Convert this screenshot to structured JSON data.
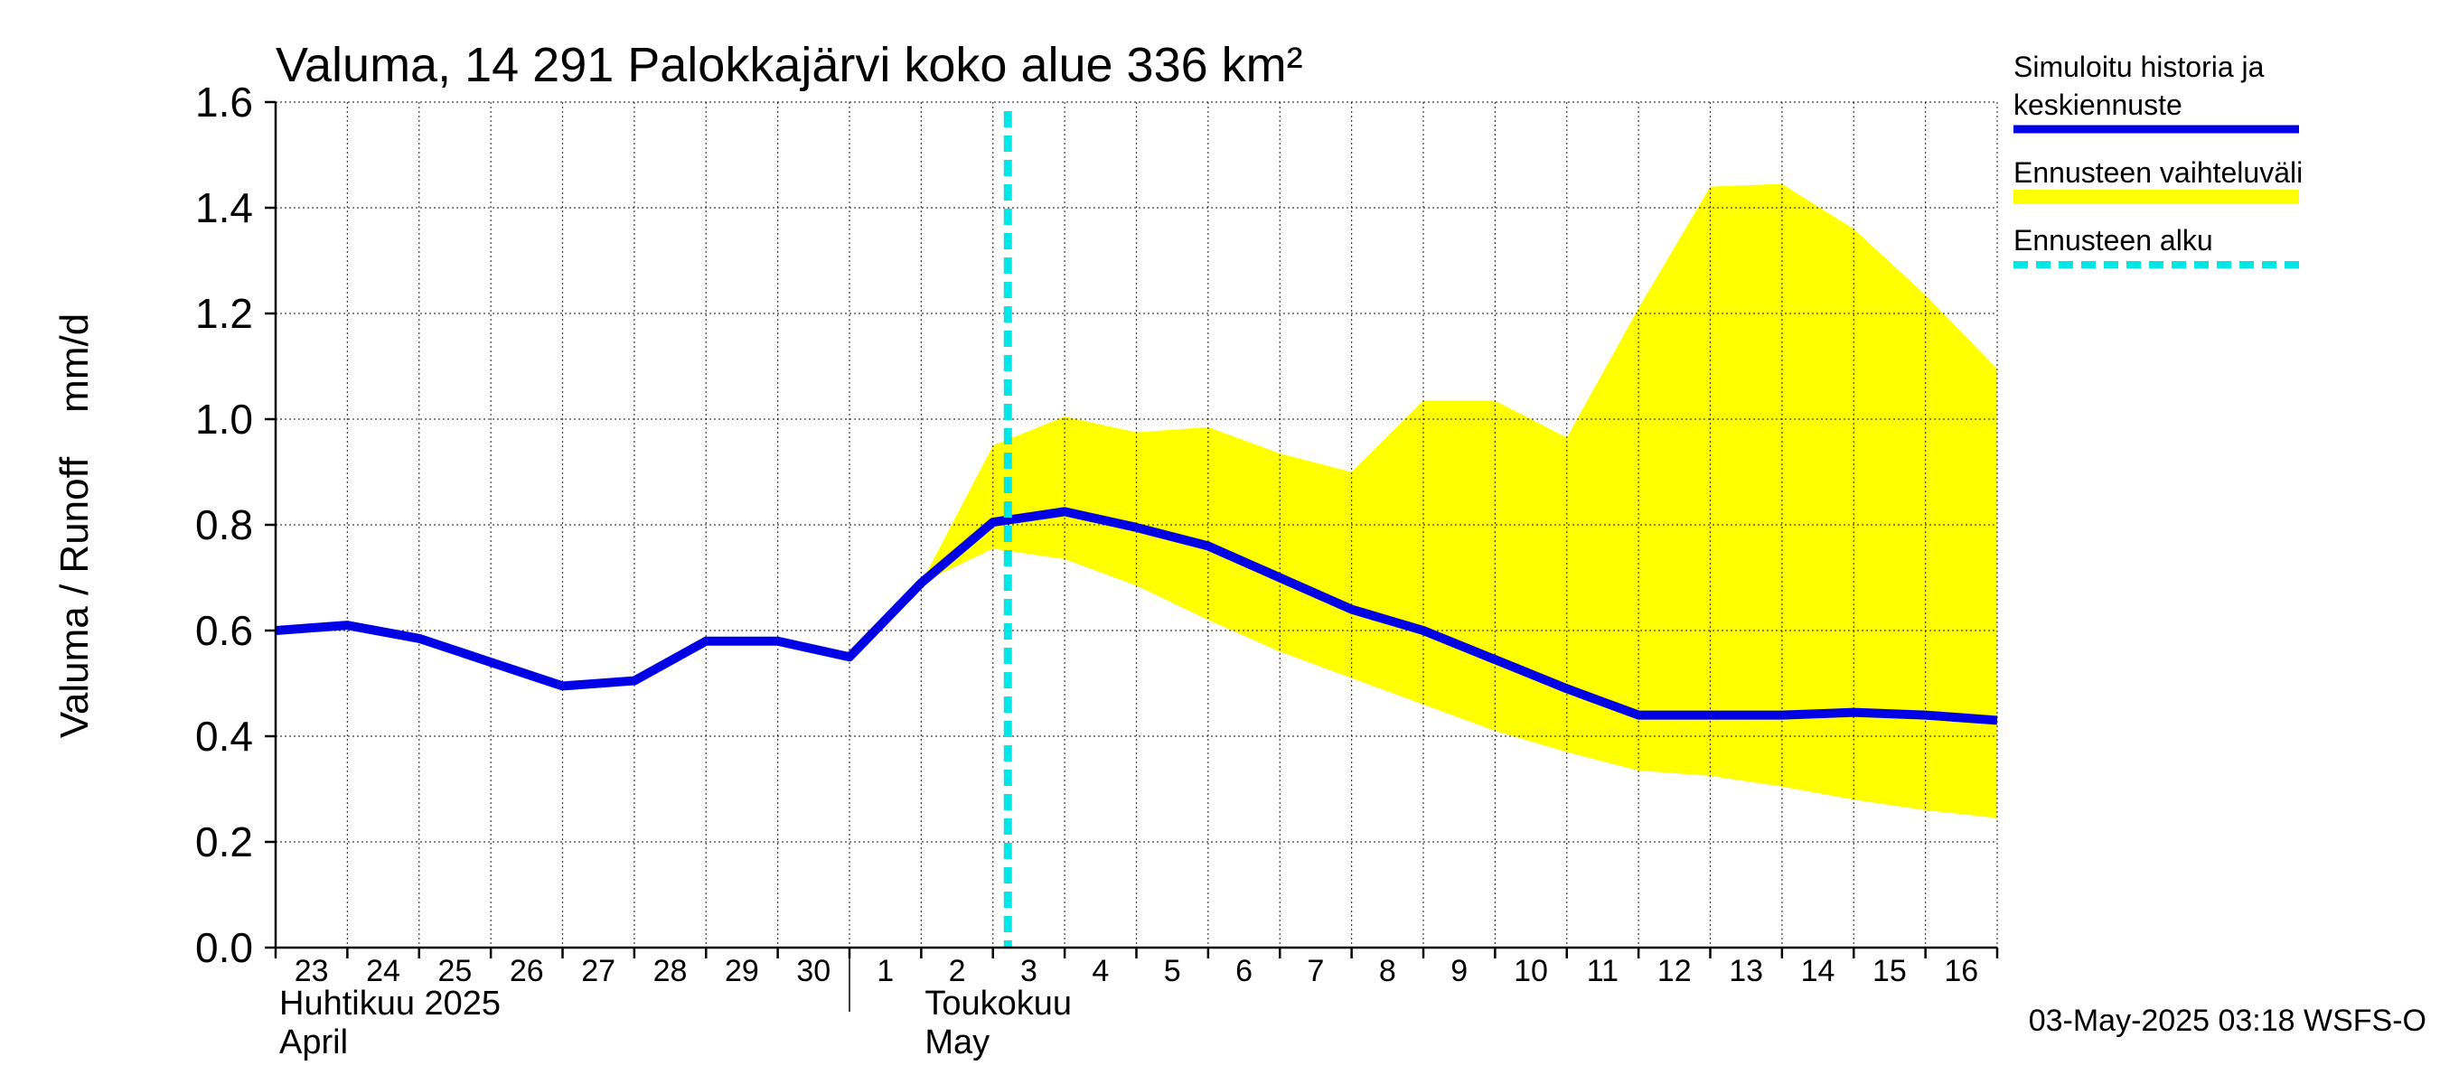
{
  "chart_data": {
    "type": "line",
    "title": "Valuma, 14 291 Palokkajärvi koko alue 336 km²",
    "ylabel": "Valuma / Runoff    mm/d",
    "ylim": [
      0.0,
      1.6
    ],
    "yticks": [
      "0.0",
      "0.2",
      "0.4",
      "0.6",
      "0.8",
      "1.0",
      "1.2",
      "1.4",
      "1.6"
    ],
    "x_start": "2025-04-23",
    "x_end": "2025-05-17",
    "day_labels": [
      "23",
      "24",
      "25",
      "26",
      "27",
      "28",
      "29",
      "30",
      "1",
      "2",
      "3",
      "4",
      "5",
      "6",
      "7",
      "8",
      "9",
      "10",
      "11",
      "12",
      "13",
      "14",
      "15",
      "16"
    ],
    "month_labels": [
      {
        "date": "2025-04-23",
        "line1": "Huhtikuu  2025",
        "line2": "April"
      },
      {
        "date": "2025-05-02",
        "line1": "Toukokuu",
        "line2": "May"
      }
    ],
    "forecast_start": "2025-05-03T05:00",
    "series": [
      {
        "name": "Simuloitu historia ja keskiennuste",
        "color": "#0000e6",
        "points": [
          [
            "2025-04-23",
            0.6
          ],
          [
            "2025-04-24",
            0.61
          ],
          [
            "2025-04-25",
            0.585
          ],
          [
            "2025-04-26",
            0.54
          ],
          [
            "2025-04-27",
            0.495
          ],
          [
            "2025-04-28",
            0.505
          ],
          [
            "2025-04-29",
            0.58
          ],
          [
            "2025-04-30",
            0.58
          ],
          [
            "2025-05-01",
            0.55
          ],
          [
            "2025-05-02",
            0.69
          ],
          [
            "2025-05-03",
            0.805
          ],
          [
            "2025-05-04",
            0.825
          ],
          [
            "2025-05-05",
            0.795
          ],
          [
            "2025-05-06",
            0.76
          ],
          [
            "2025-05-07",
            0.7
          ],
          [
            "2025-05-08",
            0.64
          ],
          [
            "2025-05-09",
            0.6
          ],
          [
            "2025-05-10",
            0.545
          ],
          [
            "2025-05-11",
            0.49
          ],
          [
            "2025-05-12",
            0.44
          ],
          [
            "2025-05-13",
            0.44
          ],
          [
            "2025-05-14",
            0.44
          ],
          [
            "2025-05-15",
            0.445
          ],
          [
            "2025-05-16",
            0.44
          ],
          [
            "2025-05-17",
            0.43
          ]
        ]
      },
      {
        "name": "Ennusteen vaihteluväli",
        "color": "#ffff00",
        "upper": [
          [
            "2025-05-02",
            0.69
          ],
          [
            "2025-05-03",
            0.95
          ],
          [
            "2025-05-04",
            1.005
          ],
          [
            "2025-05-05",
            0.975
          ],
          [
            "2025-05-06",
            0.985
          ],
          [
            "2025-05-07",
            0.935
          ],
          [
            "2025-05-08",
            0.9
          ],
          [
            "2025-05-09",
            1.035
          ],
          [
            "2025-05-10",
            1.035
          ],
          [
            "2025-05-11",
            0.965
          ],
          [
            "2025-05-12",
            1.21
          ],
          [
            "2025-05-13",
            1.44
          ],
          [
            "2025-05-14",
            1.445
          ],
          [
            "2025-05-15",
            1.36
          ],
          [
            "2025-05-16",
            1.235
          ],
          [
            "2025-05-17",
            1.095
          ]
        ],
        "lower": [
          [
            "2025-05-02",
            0.69
          ],
          [
            "2025-05-03",
            0.755
          ],
          [
            "2025-05-04",
            0.735
          ],
          [
            "2025-05-05",
            0.685
          ],
          [
            "2025-05-06",
            0.62
          ],
          [
            "2025-05-07",
            0.56
          ],
          [
            "2025-05-08",
            0.51
          ],
          [
            "2025-05-09",
            0.46
          ],
          [
            "2025-05-10",
            0.41
          ],
          [
            "2025-05-11",
            0.37
          ],
          [
            "2025-05-12",
            0.335
          ],
          [
            "2025-05-13",
            0.325
          ],
          [
            "2025-05-14",
            0.305
          ],
          [
            "2025-05-15",
            0.28
          ],
          [
            "2025-05-16",
            0.26
          ],
          [
            "2025-05-17",
            0.245
          ]
        ]
      }
    ],
    "legend": {
      "placement": "right",
      "items": [
        {
          "line1": "Simuloitu historia ja",
          "line2": "keskiennuste",
          "style": "solid",
          "color": "#0000e6"
        },
        {
          "line1": "Ennusteen vaihteluväli",
          "line2": "",
          "style": "band",
          "color": "#ffff00"
        },
        {
          "line1": "Ennusteen alku",
          "line2": "",
          "style": "dashed",
          "color": "#00e6e6"
        }
      ]
    },
    "grid": true,
    "timestamp": "03-May-2025 03:18 WSFS-O"
  }
}
